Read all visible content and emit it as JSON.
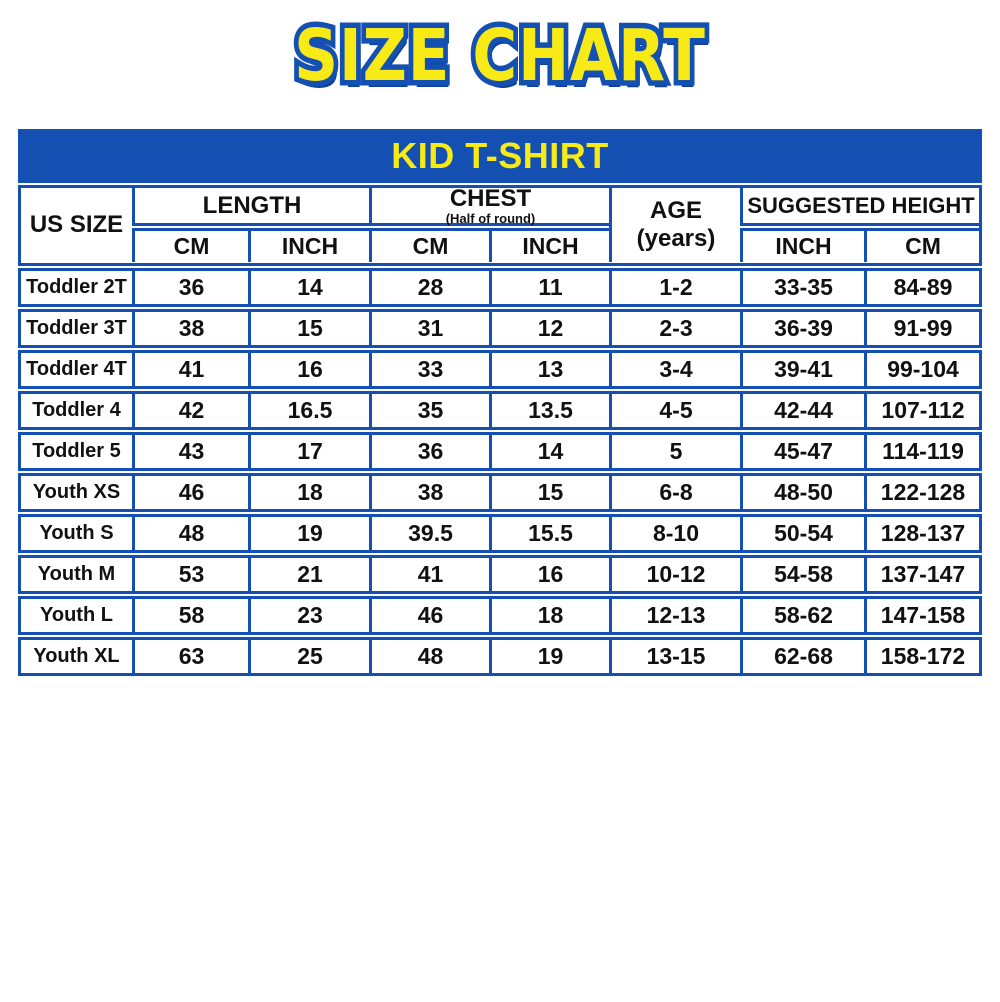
{
  "title": {
    "text": "SIZE CHART"
  },
  "banner": {
    "label": "KID T-SHIRT"
  },
  "header": {
    "us_size": "US SIZE",
    "length": "LENGTH",
    "chest": "CHEST",
    "chest_note": "(Half of round)",
    "age": "AGE",
    "age_unit": "(years)",
    "suggested_height": "SUGGESTED HEIGHT",
    "cm": "CM",
    "inch": "INCH"
  },
  "colors": {
    "blue": "#1450b2",
    "yellow": "#f8ea16",
    "text": "#111111",
    "background": "#ffffff"
  },
  "chart_data": {
    "type": "table",
    "title": "SIZE CHART",
    "subtitle": "KID T-SHIRT",
    "column_groups": [
      {
        "label": "US SIZE",
        "span": 1
      },
      {
        "label": "LENGTH",
        "span": 2
      },
      {
        "label": "CHEST (Half of round)",
        "span": 2
      },
      {
        "label": "AGE (years)",
        "span": 1
      },
      {
        "label": "SUGGESTED HEIGHT",
        "span": 2
      }
    ],
    "columns": [
      "US SIZE",
      "LENGTH CM",
      "LENGTH INCH",
      "CHEST CM",
      "CHEST INCH",
      "AGE (years)",
      "SUGGESTED HEIGHT INCH",
      "SUGGESTED HEIGHT CM"
    ],
    "rows": [
      [
        "Toddler 2T",
        "36",
        "14",
        "28",
        "11",
        "1-2",
        "33-35",
        "84-89"
      ],
      [
        "Toddler 3T",
        "38",
        "15",
        "31",
        "12",
        "2-3",
        "36-39",
        "91-99"
      ],
      [
        "Toddler 4T",
        "41",
        "16",
        "33",
        "13",
        "3-4",
        "39-41",
        "99-104"
      ],
      [
        "Toddler 4",
        "42",
        "16.5",
        "35",
        "13.5",
        "4-5",
        "42-44",
        "107-112"
      ],
      [
        "Toddler 5",
        "43",
        "17",
        "36",
        "14",
        "5",
        "45-47",
        "114-119"
      ],
      [
        "Youth XS",
        "46",
        "18",
        "38",
        "15",
        "6-8",
        "48-50",
        "122-128"
      ],
      [
        "Youth S",
        "48",
        "19",
        "39.5",
        "15.5",
        "8-10",
        "50-54",
        "128-137"
      ],
      [
        "Youth M",
        "53",
        "21",
        "41",
        "16",
        "10-12",
        "54-58",
        "137-147"
      ],
      [
        "Youth L",
        "58",
        "23",
        "46",
        "18",
        "12-13",
        "58-62",
        "147-158"
      ],
      [
        "Youth XL",
        "63",
        "25",
        "48",
        "19",
        "13-15",
        "62-68",
        "158-172"
      ]
    ]
  }
}
